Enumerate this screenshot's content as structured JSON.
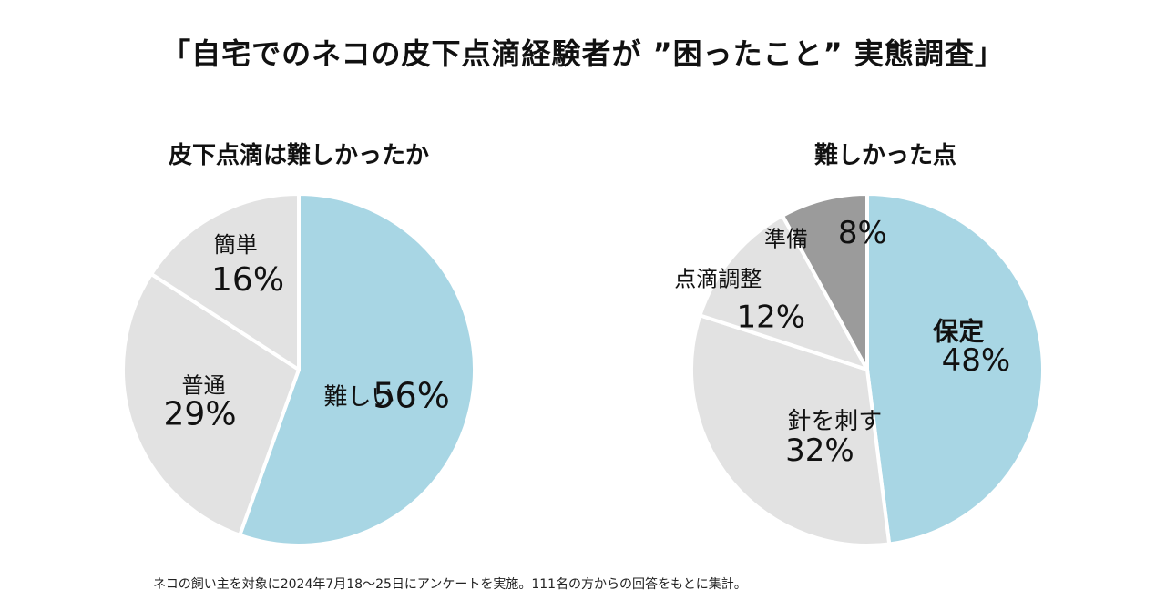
{
  "page_title": "「自宅でのネコの皮下点滴経験者が ”困ったこと” 実態調査」",
  "footnote": "ネコの飼い主を対象に2024年7月18〜25日にアンケートを実施。111名の方からの回答をもとに集計。",
  "colors": {
    "highlight": "#a8d6e4",
    "neutral": "#e2e2e2",
    "dark": "#9b9b9b",
    "separator": "#ffffff"
  },
  "chart_data": [
    {
      "type": "pie",
      "title": "皮下点滴は難しかったか",
      "start_angle_deg": 0,
      "slices": [
        {
          "label": "難しい",
          "value": 56,
          "value_label": "56%",
          "color": "#a8d6e4"
        },
        {
          "label": "普通",
          "value": 29,
          "value_label": "29%",
          "color": "#e2e2e2"
        },
        {
          "label": "簡単",
          "value": 16,
          "value_label": "16%",
          "color": "#e2e2e2"
        }
      ]
    },
    {
      "type": "pie",
      "title": "難しかった点",
      "start_angle_deg": 0,
      "slices": [
        {
          "label": "保定",
          "value": 48,
          "value_label": "48%",
          "color": "#a8d6e4"
        },
        {
          "label": "針を刺す",
          "value": 32,
          "value_label": "32%",
          "color": "#e2e2e2"
        },
        {
          "label": "点滴調整",
          "value": 12,
          "value_label": "12%",
          "color": "#e2e2e2"
        },
        {
          "label": "準備",
          "value": 8,
          "value_label": "8%",
          "color": "#9b9b9b"
        }
      ]
    }
  ]
}
